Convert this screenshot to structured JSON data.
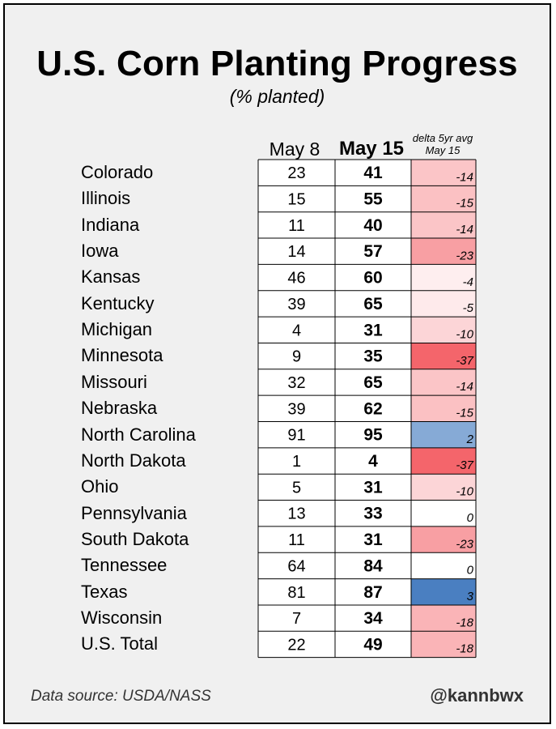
{
  "title": "U.S. Corn Planting Progress",
  "subtitle": "(% planted)",
  "columns": {
    "may8": "May 8",
    "may15": "May 15",
    "delta": "delta 5yr avg May 15"
  },
  "footer": {
    "source": "Data source: USDA/NASS",
    "handle": "@kannbwx"
  },
  "colors": {
    "negative_max": "#f4656b",
    "positive_max": "#4a7fc1",
    "neutral": "#ffffff"
  },
  "chart_data": {
    "type": "table",
    "rows": [
      {
        "state": "Colorado",
        "may8": 23,
        "may15": 41,
        "delta": -14
      },
      {
        "state": "Illinois",
        "may8": 15,
        "may15": 55,
        "delta": -15
      },
      {
        "state": "Indiana",
        "may8": 11,
        "may15": 40,
        "delta": -14
      },
      {
        "state": "Iowa",
        "may8": 14,
        "may15": 57,
        "delta": -23
      },
      {
        "state": "Kansas",
        "may8": 46,
        "may15": 60,
        "delta": -4
      },
      {
        "state": "Kentucky",
        "may8": 39,
        "may15": 65,
        "delta": -5
      },
      {
        "state": "Michigan",
        "may8": 4,
        "may15": 31,
        "delta": -10
      },
      {
        "state": "Minnesota",
        "may8": 9,
        "may15": 35,
        "delta": -37
      },
      {
        "state": "Missouri",
        "may8": 32,
        "may15": 65,
        "delta": -14
      },
      {
        "state": "Nebraska",
        "may8": 39,
        "may15": 62,
        "delta": -15
      },
      {
        "state": "North Carolina",
        "may8": 91,
        "may15": 95,
        "delta": 2
      },
      {
        "state": "North Dakota",
        "may8": 1,
        "may15": 4,
        "delta": -37
      },
      {
        "state": "Ohio",
        "may8": 5,
        "may15": 31,
        "delta": -10
      },
      {
        "state": "Pennsylvania",
        "may8": 13,
        "may15": 33,
        "delta": 0
      },
      {
        "state": "South Dakota",
        "may8": 11,
        "may15": 31,
        "delta": -23
      },
      {
        "state": "Tennessee",
        "may8": 64,
        "may15": 84,
        "delta": 0
      },
      {
        "state": "Texas",
        "may8": 81,
        "may15": 87,
        "delta": 3
      },
      {
        "state": "Wisconsin",
        "may8": 7,
        "may15": 34,
        "delta": -18
      },
      {
        "state": "U.S. Total",
        "may8": 22,
        "may15": 49,
        "delta": -18
      }
    ]
  }
}
